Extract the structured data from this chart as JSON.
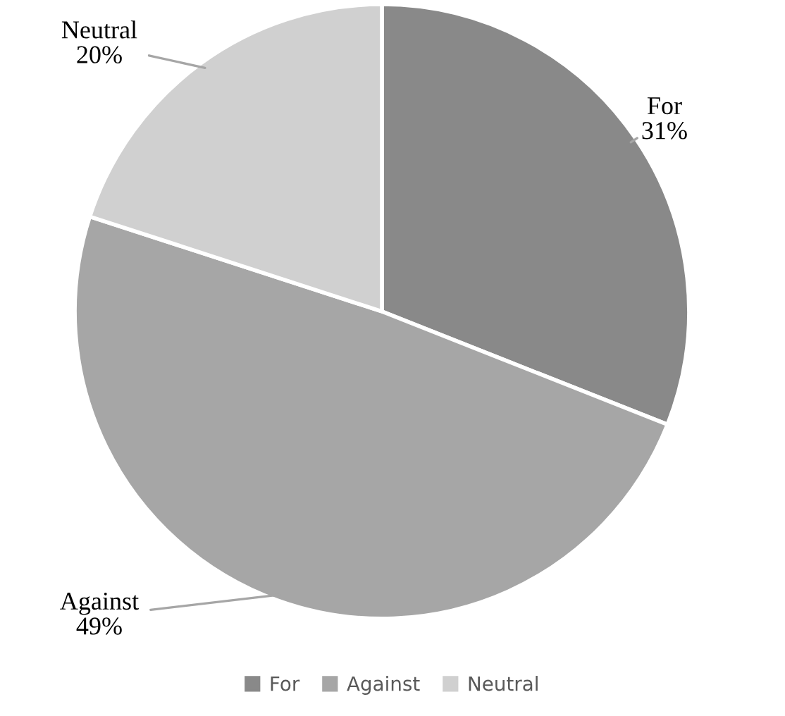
{
  "chart_data": {
    "type": "pie",
    "categories": [
      "For",
      "Against",
      "Neutral"
    ],
    "values": [
      31,
      49,
      20
    ],
    "colors": [
      "#898989",
      "#a6a6a6",
      "#d0d0d0"
    ],
    "value_labels": [
      "31%",
      "49%",
      "20%"
    ],
    "legend": "bottom"
  }
}
